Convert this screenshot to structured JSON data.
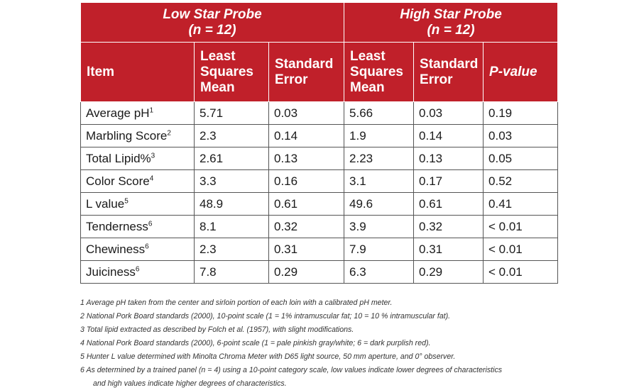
{
  "table": {
    "group_headers": [
      {
        "title": "Low Star Probe",
        "n": "(n = 12)"
      },
      {
        "title": "High Star Probe",
        "n": "(n = 12)"
      }
    ],
    "columns": [
      "Item",
      "Least Squares Mean",
      "Standard Error",
      "Least Squares Mean",
      "Standard Error",
      "P-value"
    ],
    "rows": [
      {
        "item": "Average pH",
        "sup": "1",
        "low_mean": "5.71",
        "low_se": "0.03",
        "high_mean": "5.66",
        "high_se": "0.03",
        "p": "0.19"
      },
      {
        "item": "Marbling Score",
        "sup": "2",
        "low_mean": "2.3",
        "low_se": "0.14",
        "high_mean": "1.9",
        "high_se": "0.14",
        "p": "0.03"
      },
      {
        "item": "Total Lipid%",
        "sup": "3",
        "low_mean": "2.61",
        "low_se": "0.13",
        "high_mean": "2.23",
        "high_se": "0.13",
        "p": "0.05"
      },
      {
        "item": "Color Score",
        "sup": "4",
        "low_mean": "3.3",
        "low_se": "0.16",
        "high_mean": "3.1",
        "high_se": "0.17",
        "p": "0.52"
      },
      {
        "item": "L value",
        "sup": "5",
        "low_mean": "48.9",
        "low_se": "0.61",
        "high_mean": "49.6",
        "high_se": "0.61",
        "p": "0.41"
      },
      {
        "item": "Tenderness",
        "sup": "6",
        "low_mean": "8.1",
        "low_se": "0.32",
        "high_mean": "3.9",
        "high_se": "0.32",
        "p": "< 0.01"
      },
      {
        "item": "Chewiness",
        "sup": "6",
        "low_mean": "2.3",
        "low_se": "0.31",
        "high_mean": "7.9",
        "high_se": "0.31",
        "p": "< 0.01"
      },
      {
        "item": "Juiciness",
        "sup": "6",
        "low_mean": "7.8",
        "low_se": "0.29",
        "high_mean": "6.3",
        "high_se": "0.29",
        "p": "< 0.01"
      }
    ]
  },
  "footnotes": [
    "1 Average pH taken from the center and sirloin portion of each loin with a calibrated pH meter.",
    "2 National Pork Board standards (2000), 10-point scale (1 = 1% intramuscular fat; 10 = 10 % intramuscular fat).",
    "3 Total lipid extracted as described by Folch et al. (1957), with slight modifications.",
    "4 National Pork Board standards (2000), 6-point scale (1 = pale pinkish gray/white; 6 = dark purplish red).",
    "5 Hunter L value determined with Minolta Chroma Meter with D65 light source, 50 mm aperture, and 0° observer.",
    "6 As determined by a trained panel (n = 4) using a 10-point category scale, low values indicate lower degrees of characteristics",
    "and high values indicate higher degrees of characteristics."
  ],
  "colors": {
    "header_red": "#c0202a",
    "header_text": "#ffffff",
    "border": "#555555"
  }
}
